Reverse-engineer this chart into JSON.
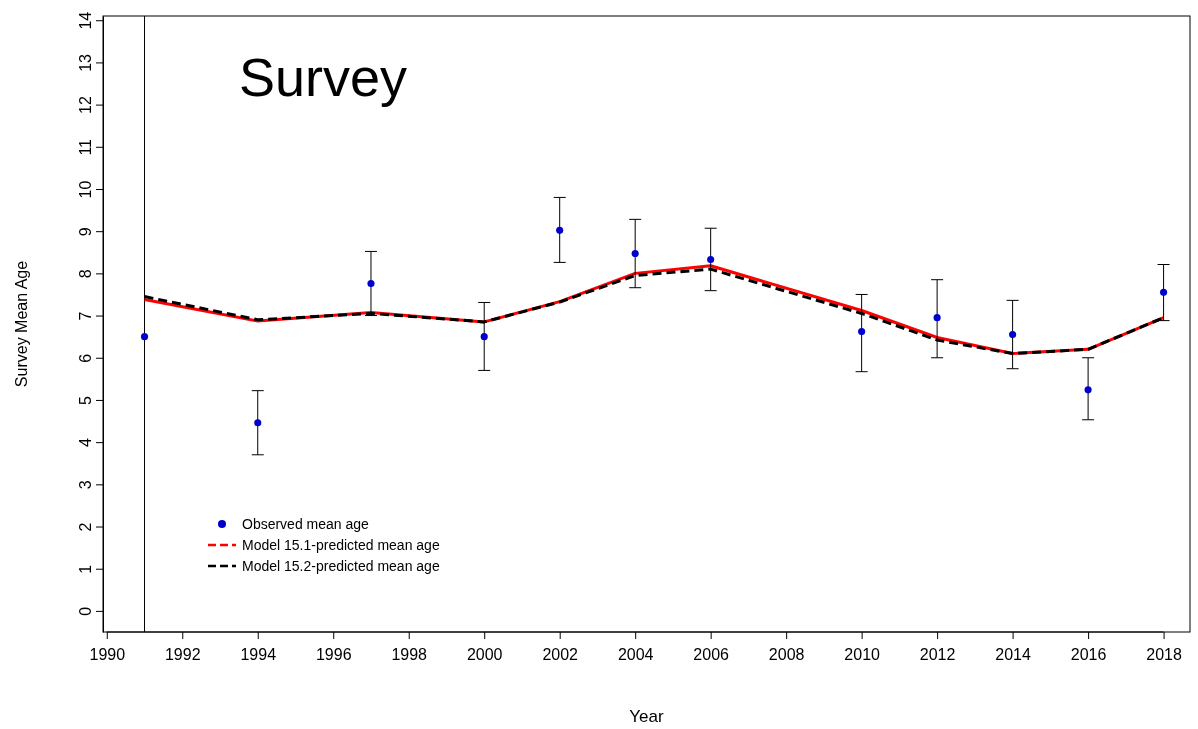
{
  "chart_data": {
    "type": "scatter",
    "title": "Survey",
    "xlabel": "Year",
    "ylabel": "Survey Mean Age",
    "x": [
      1991,
      1994,
      1997,
      2000,
      2002,
      2004,
      2006,
      2010,
      2012,
      2014,
      2016,
      2018
    ],
    "series": [
      {
        "name": "Observed mean age",
        "color": "#0000cd",
        "marker": "circle",
        "values": [
          6.5,
          4.46,
          7.76,
          6.5,
          9.02,
          8.47,
          8.33,
          6.62,
          6.95,
          6.55,
          5.24,
          7.55
        ],
        "errors": [
          null,
          [
            3.7,
            5.22
          ],
          [
            7.0,
            8.52
          ],
          [
            5.7,
            7.31
          ],
          [
            8.26,
            9.8
          ],
          [
            7.66,
            9.28
          ],
          [
            7.59,
            9.07
          ],
          [
            5.67,
            7.5
          ],
          [
            6.0,
            7.85
          ],
          [
            5.74,
            7.36
          ],
          [
            4.53,
            6.0
          ],
          [
            6.88,
            8.21
          ]
        ]
      },
      {
        "name": "Model 15.1-predicted mean age",
        "type": "line",
        "color": "#ff0000",
        "line_style": "solid",
        "values": [
          7.38,
          6.87,
          7.07,
          6.85,
          7.33,
          8.0,
          8.18,
          7.12,
          6.48,
          6.1,
          6.2,
          6.95
        ]
      },
      {
        "name": "Model 15.2-predicted mean age",
        "type": "line",
        "color": "#000000",
        "line_style": "dashed",
        "values": [
          7.45,
          6.9,
          7.05,
          6.85,
          7.32,
          7.95,
          8.1,
          7.05,
          6.42,
          6.1,
          6.2,
          6.95
        ]
      }
    ],
    "xlim": [
      1989.9,
      2018.7
    ],
    "xticks": [
      1990,
      1992,
      1994,
      1996,
      1998,
      2000,
      2002,
      2004,
      2006,
      2008,
      2010,
      2012,
      2014,
      2016,
      2018
    ],
    "ylim": [
      -0.5,
      14.1
    ],
    "yticks": [
      0,
      1,
      2,
      3,
      4,
      5,
      6,
      7,
      8,
      9,
      10,
      11,
      12,
      13,
      14
    ],
    "ref_lines": [
      {
        "axis": "x",
        "value": 1991,
        "label": null,
        "color": "#000000"
      }
    ],
    "grid": false,
    "legend": "bottom left"
  }
}
